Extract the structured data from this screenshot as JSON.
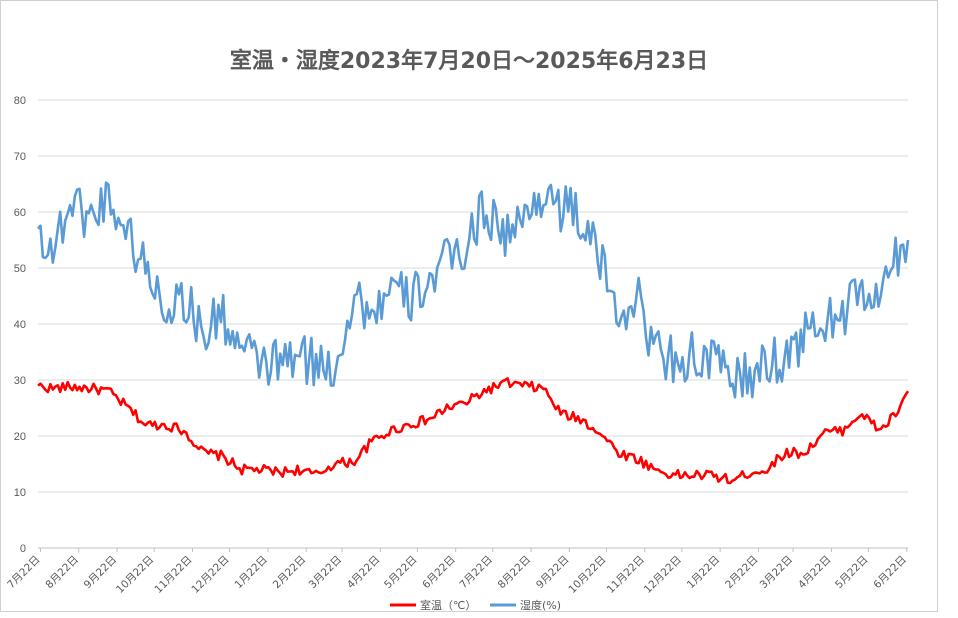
{
  "chart_data": {
    "type": "line",
    "title": "室温・湿度2023年7月20日～2025年6月23日",
    "ylim": [
      0,
      80
    ],
    "yticks": [
      0,
      10,
      20,
      30,
      40,
      50,
      60,
      70,
      80
    ],
    "grid": true,
    "legend_position": "bottom",
    "x_ticks": [
      "7月22日",
      "8月22日",
      "9月22日",
      "10月22日",
      "11月22日",
      "12月22日",
      "1月22日",
      "2月22日",
      "3月22日",
      "4月22日",
      "5月22日",
      "6月22日",
      "7月22日",
      "8月22日",
      "9月22日",
      "10月22日",
      "11月22日",
      "12月22日",
      "1月22日",
      "2月22日",
      "3月22日",
      "4月22日",
      "5月22日",
      "6月22日"
    ],
    "x": [
      "2023-07-20",
      "2023-08-01",
      "2023-08-15",
      "2023-09-01",
      "2023-09-15",
      "2023-10-01",
      "2023-10-15",
      "2023-11-01",
      "2023-11-15",
      "2023-12-01",
      "2023-12-15",
      "2024-01-01",
      "2024-01-15",
      "2024-02-01",
      "2024-02-15",
      "2024-03-01",
      "2024-03-15",
      "2024-04-01",
      "2024-04-15",
      "2024-05-01",
      "2024-05-15",
      "2024-06-01",
      "2024-06-15",
      "2024-07-01",
      "2024-07-15",
      "2024-08-01",
      "2024-08-15",
      "2024-09-01",
      "2024-09-15",
      "2024-10-01",
      "2024-10-15",
      "2024-11-01",
      "2024-11-15",
      "2024-12-01",
      "2024-12-15",
      "2025-01-01",
      "2025-01-15",
      "2025-02-01",
      "2025-02-15",
      "2025-03-01",
      "2025-03-15",
      "2025-04-01",
      "2025-04-15",
      "2025-05-01",
      "2025-05-15",
      "2025-06-01",
      "2025-06-15",
      "2025-06-23"
    ],
    "series": [
      {
        "name": "室温（℃）",
        "color": "#ff0000",
        "values": [
          29,
          28.5,
          28.8,
          28.5,
          28,
          25,
          22,
          22,
          21,
          17,
          16.5,
          14,
          14,
          13.5,
          14,
          13,
          15,
          15.5,
          19,
          21,
          22,
          23,
          25,
          26,
          28,
          29.5,
          29,
          28.5,
          24,
          23,
          21,
          17,
          16,
          14,
          13,
          13,
          13,
          12,
          13.5,
          14,
          17,
          17,
          20.5,
          21,
          24,
          21,
          24.5,
          28
        ]
      },
      {
        "name": "湿度(%)",
        "color": "#5b9bd5",
        "values": [
          57,
          53,
          62,
          59,
          63,
          56,
          50,
          43,
          45,
          38,
          42,
          35,
          33,
          33,
          34,
          33,
          32,
          45,
          42,
          46,
          44,
          48,
          51,
          54,
          61,
          56,
          58,
          64,
          61,
          59,
          52,
          42,
          45,
          35,
          34,
          34,
          33,
          31,
          30,
          33,
          34,
          38,
          40,
          42,
          45,
          45,
          52,
          55
        ]
      }
    ]
  }
}
